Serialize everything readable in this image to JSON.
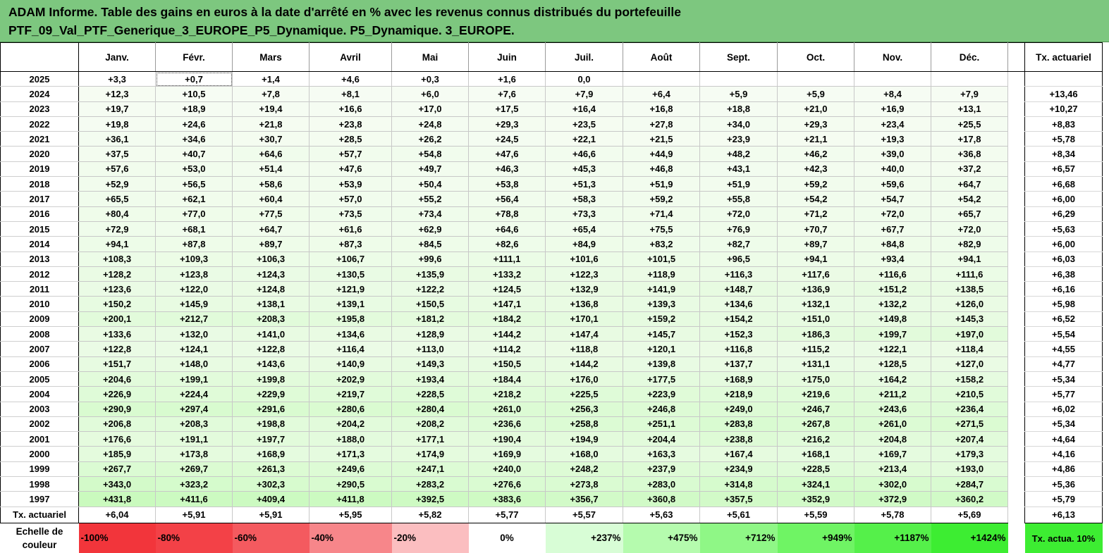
{
  "title": {
    "line1": "ADAM Informe. Table des gains en euros à la date d'arrêté en % avec les revenus connus distribués du portefeuille",
    "line2": "PTF_09_Val_PTF_Generique_3_EUROPE_P5_Dynamique. P5_Dynamique. 3_EUROPE."
  },
  "columns": {
    "months": [
      "Janv.",
      "Févr.",
      "Mars",
      "Avril",
      "Mai",
      "Juin",
      "Juil.",
      "Août",
      "Sept.",
      "Oct.",
      "Nov.",
      "Déc."
    ],
    "tx_header": "Tx. actuariel"
  },
  "rows": [
    {
      "year": "2025",
      "values": [
        "+3,3",
        "+0,7",
        "+1,4",
        "+4,6",
        "+0,3",
        "+1,6",
        "0,0",
        "",
        "",
        "",
        "",
        ""
      ],
      "tx": ""
    },
    {
      "year": "2024",
      "values": [
        "+12,3",
        "+10,5",
        "+7,8",
        "+8,1",
        "+6,0",
        "+7,6",
        "+7,9",
        "+6,4",
        "+5,9",
        "+5,9",
        "+8,4",
        "+7,9"
      ],
      "tx": "+13,46"
    },
    {
      "year": "2023",
      "values": [
        "+19,7",
        "+18,9",
        "+19,4",
        "+16,6",
        "+17,0",
        "+17,5",
        "+16,4",
        "+16,8",
        "+18,8",
        "+21,0",
        "+16,9",
        "+13,1"
      ],
      "tx": "+10,27"
    },
    {
      "year": "2022",
      "values": [
        "+19,8",
        "+24,6",
        "+21,8",
        "+23,8",
        "+24,8",
        "+29,3",
        "+23,5",
        "+27,8",
        "+34,0",
        "+29,3",
        "+23,4",
        "+25,5"
      ],
      "tx": "+8,83"
    },
    {
      "year": "2021",
      "values": [
        "+36,1",
        "+34,6",
        "+30,7",
        "+28,5",
        "+26,2",
        "+24,5",
        "+22,1",
        "+21,5",
        "+23,9",
        "+21,1",
        "+19,3",
        "+17,8"
      ],
      "tx": "+5,78"
    },
    {
      "year": "2020",
      "values": [
        "+37,5",
        "+40,7",
        "+64,6",
        "+57,7",
        "+54,8",
        "+47,6",
        "+46,6",
        "+44,9",
        "+48,2",
        "+46,2",
        "+39,0",
        "+36,8"
      ],
      "tx": "+8,34"
    },
    {
      "year": "2019",
      "values": [
        "+57,6",
        "+53,0",
        "+51,4",
        "+47,6",
        "+49,7",
        "+46,3",
        "+45,3",
        "+46,8",
        "+43,1",
        "+42,3",
        "+40,0",
        "+37,2"
      ],
      "tx": "+6,57"
    },
    {
      "year": "2018",
      "values": [
        "+52,9",
        "+56,5",
        "+58,6",
        "+53,9",
        "+50,4",
        "+53,8",
        "+51,3",
        "+51,9",
        "+51,9",
        "+59,2",
        "+59,6",
        "+64,7"
      ],
      "tx": "+6,68"
    },
    {
      "year": "2017",
      "values": [
        "+65,5",
        "+62,1",
        "+60,4",
        "+57,0",
        "+55,2",
        "+56,4",
        "+58,3",
        "+59,2",
        "+55,8",
        "+54,2",
        "+54,7",
        "+54,2"
      ],
      "tx": "+6,00"
    },
    {
      "year": "2016",
      "values": [
        "+80,4",
        "+77,0",
        "+77,5",
        "+73,5",
        "+73,4",
        "+78,8",
        "+73,3",
        "+71,4",
        "+72,0",
        "+71,2",
        "+72,0",
        "+65,7"
      ],
      "tx": "+6,29"
    },
    {
      "year": "2015",
      "values": [
        "+72,9",
        "+68,1",
        "+64,7",
        "+61,6",
        "+62,9",
        "+64,6",
        "+65,4",
        "+75,5",
        "+76,9",
        "+70,7",
        "+67,7",
        "+72,0"
      ],
      "tx": "+5,63"
    },
    {
      "year": "2014",
      "values": [
        "+94,1",
        "+87,8",
        "+89,7",
        "+87,3",
        "+84,5",
        "+82,6",
        "+84,9",
        "+83,2",
        "+82,7",
        "+89,7",
        "+84,8",
        "+82,9"
      ],
      "tx": "+6,00"
    },
    {
      "year": "2013",
      "values": [
        "+108,3",
        "+109,3",
        "+106,3",
        "+106,7",
        "+99,6",
        "+111,1",
        "+101,6",
        "+101,5",
        "+96,5",
        "+94,1",
        "+93,4",
        "+94,1"
      ],
      "tx": "+6,03"
    },
    {
      "year": "2012",
      "values": [
        "+128,2",
        "+123,8",
        "+124,3",
        "+130,5",
        "+135,9",
        "+133,2",
        "+122,3",
        "+118,9",
        "+116,3",
        "+117,6",
        "+116,6",
        "+111,6"
      ],
      "tx": "+6,38"
    },
    {
      "year": "2011",
      "values": [
        "+123,6",
        "+122,0",
        "+124,8",
        "+121,9",
        "+122,2",
        "+124,5",
        "+132,9",
        "+141,9",
        "+148,7",
        "+136,9",
        "+151,2",
        "+138,5"
      ],
      "tx": "+6,16"
    },
    {
      "year": "2010",
      "values": [
        "+150,2",
        "+145,9",
        "+138,1",
        "+139,1",
        "+150,5",
        "+147,1",
        "+136,8",
        "+139,3",
        "+134,6",
        "+132,1",
        "+132,2",
        "+126,0"
      ],
      "tx": "+5,98"
    },
    {
      "year": "2009",
      "values": [
        "+200,1",
        "+212,7",
        "+208,3",
        "+195,8",
        "+181,2",
        "+184,2",
        "+170,1",
        "+159,2",
        "+154,2",
        "+151,0",
        "+149,8",
        "+145,3"
      ],
      "tx": "+6,52"
    },
    {
      "year": "2008",
      "values": [
        "+133,6",
        "+132,0",
        "+141,0",
        "+134,6",
        "+128,9",
        "+144,2",
        "+147,4",
        "+145,7",
        "+152,3",
        "+186,3",
        "+199,7",
        "+197,0"
      ],
      "tx": "+5,54"
    },
    {
      "year": "2007",
      "values": [
        "+122,8",
        "+124,1",
        "+122,8",
        "+116,4",
        "+113,0",
        "+114,2",
        "+118,8",
        "+120,1",
        "+116,8",
        "+115,2",
        "+122,1",
        "+118,4"
      ],
      "tx": "+4,55"
    },
    {
      "year": "2006",
      "values": [
        "+151,7",
        "+148,0",
        "+143,6",
        "+140,9",
        "+149,3",
        "+150,5",
        "+144,2",
        "+139,8",
        "+137,7",
        "+131,1",
        "+128,5",
        "+127,0"
      ],
      "tx": "+4,77"
    },
    {
      "year": "2005",
      "values": [
        "+204,6",
        "+199,1",
        "+199,8",
        "+202,9",
        "+193,4",
        "+184,4",
        "+176,0",
        "+177,5",
        "+168,9",
        "+175,0",
        "+164,2",
        "+158,2"
      ],
      "tx": "+5,34"
    },
    {
      "year": "2004",
      "values": [
        "+226,9",
        "+224,4",
        "+229,9",
        "+219,7",
        "+228,5",
        "+218,2",
        "+225,5",
        "+223,9",
        "+218,9",
        "+219,6",
        "+211,2",
        "+210,5"
      ],
      "tx": "+5,77"
    },
    {
      "year": "2003",
      "values": [
        "+290,9",
        "+297,4",
        "+291,6",
        "+280,6",
        "+280,4",
        "+261,0",
        "+256,3",
        "+246,8",
        "+249,0",
        "+246,7",
        "+243,6",
        "+236,4"
      ],
      "tx": "+6,02"
    },
    {
      "year": "2002",
      "values": [
        "+206,8",
        "+208,3",
        "+198,8",
        "+204,2",
        "+208,2",
        "+236,6",
        "+258,8",
        "+251,1",
        "+283,8",
        "+267,8",
        "+261,0",
        "+271,5"
      ],
      "tx": "+5,34"
    },
    {
      "year": "2001",
      "values": [
        "+176,6",
        "+191,1",
        "+197,7",
        "+188,0",
        "+177,1",
        "+190,4",
        "+194,9",
        "+204,4",
        "+238,8",
        "+216,2",
        "+204,8",
        "+207,4"
      ],
      "tx": "+4,64"
    },
    {
      "year": "2000",
      "values": [
        "+185,9",
        "+173,8",
        "+168,9",
        "+171,3",
        "+174,9",
        "+169,9",
        "+168,0",
        "+163,3",
        "+167,4",
        "+168,1",
        "+169,7",
        "+179,3"
      ],
      "tx": "+4,16"
    },
    {
      "year": "1999",
      "values": [
        "+267,7",
        "+269,7",
        "+261,3",
        "+249,6",
        "+247,1",
        "+240,0",
        "+248,2",
        "+237,9",
        "+234,9",
        "+228,5",
        "+213,4",
        "+193,0"
      ],
      "tx": "+4,86"
    },
    {
      "year": "1998",
      "values": [
        "+343,0",
        "+323,2",
        "+302,3",
        "+290,5",
        "+283,2",
        "+276,6",
        "+273,8",
        "+283,0",
        "+314,8",
        "+324,1",
        "+302,0",
        "+284,7"
      ],
      "tx": "+5,36"
    },
    {
      "year": "1997",
      "values": [
        "+431,8",
        "+411,6",
        "+409,4",
        "+411,8",
        "+392,5",
        "+383,6",
        "+356,7",
        "+360,8",
        "+357,5",
        "+352,9",
        "+372,9",
        "+360,2"
      ],
      "tx": "+5,79"
    }
  ],
  "averages": {
    "label": "Tx. actuariel",
    "values": [
      "+6,04",
      "+5,91",
      "+5,91",
      "+5,95",
      "+5,82",
      "+5,77",
      "+5,57",
      "+5,63",
      "+5,61",
      "+5,59",
      "+5,78",
      "+5,69"
    ],
    "tx": "+6,13"
  },
  "scale": {
    "label": "Echelle de couleur",
    "items": [
      {
        "label": "-100%",
        "color": "#f2353b"
      },
      {
        "label": "-80%",
        "color": "#f34147"
      },
      {
        "label": "-60%",
        "color": "#f45a5f"
      },
      {
        "label": "-40%",
        "color": "#f7868a"
      },
      {
        "label": "-20%",
        "color": "#fbbec0"
      },
      {
        "label": "0%",
        "color": "#ffffff"
      },
      {
        "label": "+237%",
        "color": "#d8fdd6"
      },
      {
        "label": "+475%",
        "color": "#b5fbae"
      },
      {
        "label": "+712%",
        "color": "#8ff786"
      },
      {
        "label": "+949%",
        "color": "#6ff464"
      },
      {
        "label": "+1187%",
        "color": "#55f04a"
      },
      {
        "label": "+1424%",
        "color": "#3ded32"
      }
    ],
    "tx_label": "Tx. actua. 10%",
    "tx_color": "#3ded32"
  },
  "colors": {
    "header_bg": "#7dc77f"
  }
}
